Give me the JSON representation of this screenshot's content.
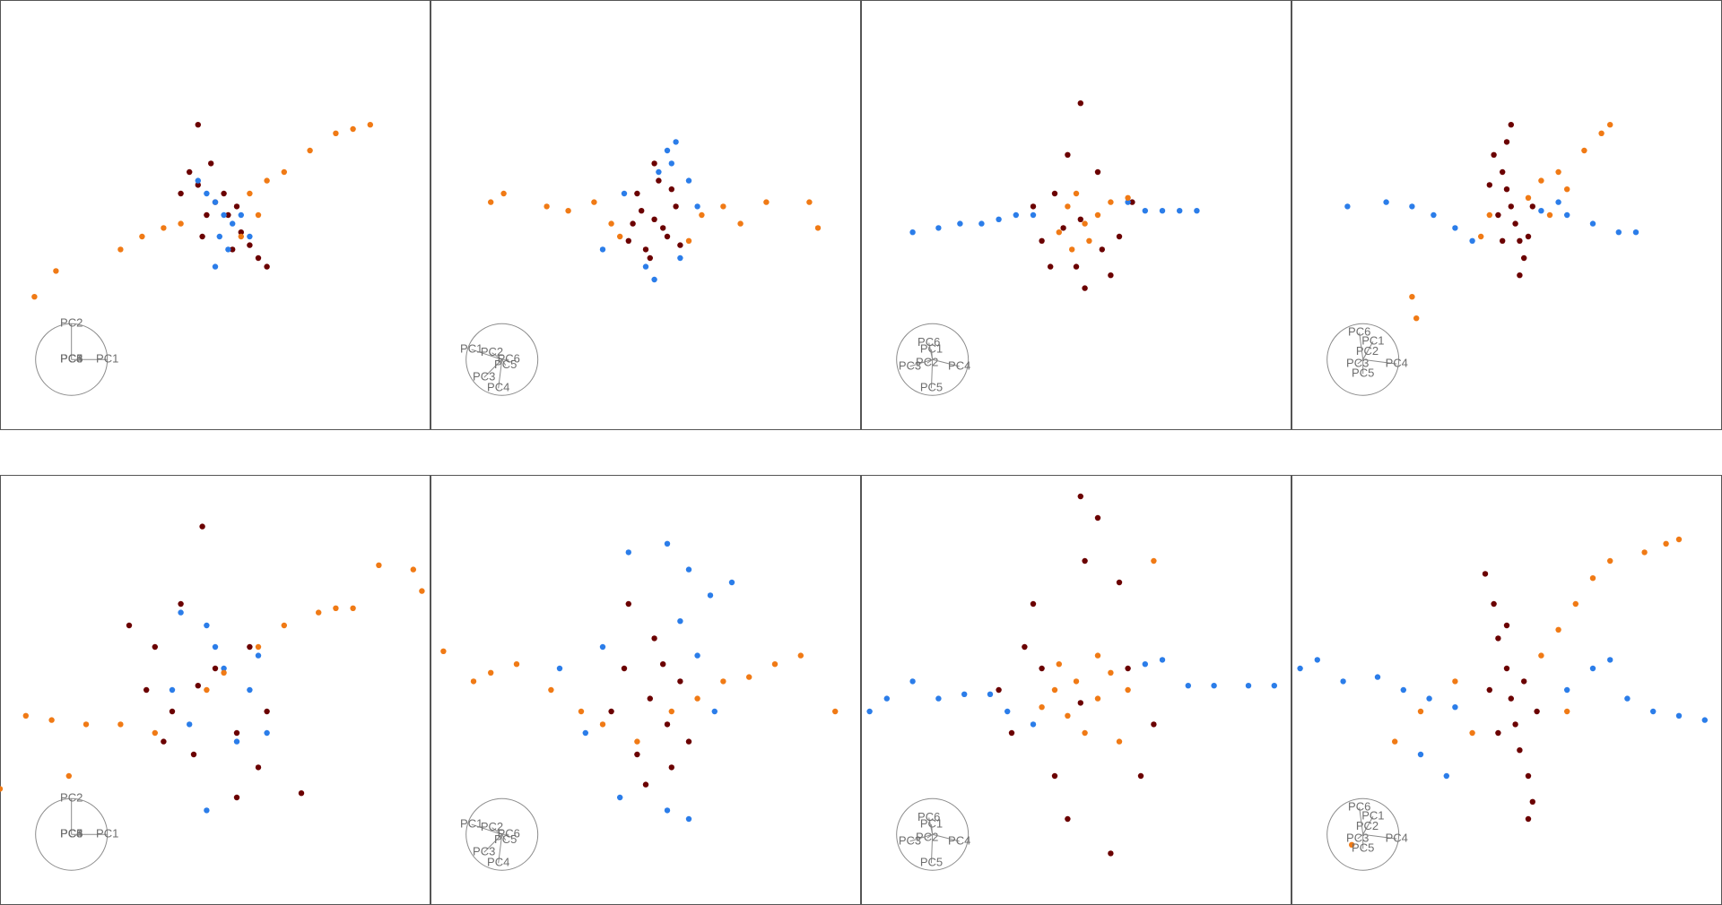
{
  "chart_data": [
    {
      "type": "scatter",
      "xlim": [
        0,
        100
      ],
      "ylim": [
        100,
        0
      ],
      "series": [
        {
          "color": "#6b0000",
          "x": [
            46,
            50,
            53,
            56,
            48,
            52,
            58,
            44,
            60,
            47,
            55,
            49,
            62,
            42,
            54,
            46
          ],
          "values": [
            43,
            47,
            50,
            54,
            50,
            45,
            57,
            40,
            60,
            55,
            48,
            38,
            62,
            45,
            58,
            29
          ]
        },
        {
          "color": "#2b7de9",
          "x": [
            50,
            52,
            54,
            48,
            51,
            56,
            50,
            53,
            46,
            58
          ],
          "values": [
            47,
            50,
            52,
            45,
            55,
            50,
            62,
            58,
            42,
            55
          ]
        },
        {
          "color": "#f07a15",
          "x": [
            8,
            13,
            28,
            33,
            38,
            42,
            58,
            62,
            66,
            72,
            78,
            82,
            86,
            60,
            56
          ],
          "values": [
            69,
            63,
            58,
            55,
            53,
            52,
            45,
            42,
            40,
            35,
            31,
            30,
            29,
            50,
            55
          ]
        }
      ],
      "axes": [
        {
          "label": "PC1",
          "x": 1.0,
          "y": 0
        },
        {
          "label": "PC2",
          "x": 0,
          "y": -1.0
        },
        {
          "label": "PC3",
          "x": 0,
          "y": 0
        },
        {
          "label": "PC4",
          "x": 0,
          "y": 0
        },
        {
          "label": "PC5",
          "x": 0,
          "y": 0
        },
        {
          "label": "PC6",
          "x": 0,
          "y": 0
        }
      ]
    },
    {
      "type": "scatter",
      "xlim": [
        0,
        100
      ],
      "ylim": [
        100,
        0
      ],
      "series": [
        {
          "color": "#6b0000",
          "x": [
            52,
            48,
            55,
            50,
            57,
            47,
            53,
            51,
            56,
            49,
            54,
            46,
            58,
            52
          ],
          "values": [
            51,
            45,
            55,
            58,
            48,
            52,
            42,
            60,
            44,
            49,
            53,
            56,
            57,
            38
          ]
        },
        {
          "color": "#2b7de9",
          "x": [
            55,
            57,
            53,
            60,
            45,
            58,
            50,
            52,
            40,
            62,
            56
          ],
          "values": [
            35,
            33,
            40,
            42,
            45,
            60,
            62,
            65,
            58,
            48,
            38
          ]
        },
        {
          "color": "#f07a15",
          "x": [
            14,
            17,
            27,
            32,
            38,
            42,
            63,
            68,
            72,
            78,
            88,
            90,
            60,
            44
          ],
          "values": [
            47,
            45,
            48,
            49,
            47,
            52,
            50,
            48,
            52,
            47,
            47,
            53,
            56,
            55
          ]
        }
      ],
      "axes": [
        {
          "label": "PC1",
          "x": -0.85,
          "y": -0.28
        },
        {
          "label": "PC2",
          "x": -0.28,
          "y": -0.19
        },
        {
          "label": "PC3",
          "x": -0.5,
          "y": 0.5
        },
        {
          "label": "PC4",
          "x": -0.1,
          "y": 0.8
        },
        {
          "label": "PC5",
          "x": 0.1,
          "y": 0.16
        },
        {
          "label": "PC6",
          "x": 0.19,
          "y": 0
        }
      ]
    },
    {
      "type": "scatter",
      "xlim": [
        0,
        100
      ],
      "ylim": [
        100,
        0
      ],
      "series": [
        {
          "color": "#6b0000",
          "x": [
            51,
            45,
            55,
            60,
            42,
            50,
            48,
            58,
            40,
            63,
            52,
            47,
            56,
            51,
            44
          ],
          "values": [
            51,
            45,
            40,
            55,
            56,
            62,
            36,
            64,
            48,
            47,
            67,
            53,
            58,
            24,
            62
          ]
        },
        {
          "color": "#2b7de9",
          "x": [
            12,
            18,
            23,
            28,
            32,
            36,
            40,
            66,
            70,
            74,
            78,
            62
          ],
          "values": [
            54,
            53,
            52,
            52,
            51,
            50,
            50,
            49,
            49,
            49,
            49,
            47
          ]
        },
        {
          "color": "#f07a15",
          "x": [
            48,
            52,
            50,
            55,
            46,
            53,
            58,
            49,
            62
          ],
          "values": [
            48,
            52,
            45,
            50,
            54,
            56,
            47,
            58,
            46
          ]
        }
      ],
      "axes": [
        {
          "label": "PC1",
          "x": -0.03,
          "y": -0.28
        },
        {
          "label": "PC2",
          "x": -0.15,
          "y": 0.1
        },
        {
          "label": "PC3",
          "x": -0.63,
          "y": 0.19
        },
        {
          "label": "PC4",
          "x": 0.75,
          "y": 0.19
        },
        {
          "label": "PC5",
          "x": -0.03,
          "y": 0.8
        },
        {
          "label": "PC6",
          "x": -0.1,
          "y": -0.47
        }
      ]
    },
    {
      "type": "scatter",
      "xlim": [
        0,
        100
      ],
      "ylim": [
        100,
        0
      ],
      "series": [
        {
          "color": "#6b0000",
          "x": [
            47,
            49,
            50,
            51,
            52,
            53,
            54,
            48,
            46,
            55,
            50,
            53,
            49,
            51,
            56
          ],
          "values": [
            36,
            40,
            44,
            48,
            52,
            56,
            60,
            50,
            43,
            55,
            33,
            64,
            56,
            29,
            48
          ]
        },
        {
          "color": "#2b7de9",
          "x": [
            13,
            22,
            28,
            33,
            38,
            42,
            58,
            62,
            64,
            70,
            76,
            80
          ],
          "values": [
            48,
            47,
            48,
            50,
            53,
            56,
            49,
            47,
            50,
            52,
            54,
            54
          ]
        },
        {
          "color": "#f07a15",
          "x": [
            28,
            29,
            44,
            46,
            55,
            58,
            62,
            64,
            68,
            72,
            74,
            60
          ],
          "values": [
            69,
            74,
            55,
            50,
            46,
            42,
            40,
            44,
            35,
            31,
            29,
            50
          ]
        }
      ],
      "axes": [
        {
          "label": "PC1",
          "x": 0.28,
          "y": -0.5
        },
        {
          "label": "PC2",
          "x": 0.12,
          "y": -0.22
        },
        {
          "label": "PC3",
          "x": -0.15,
          "y": 0.12
        },
        {
          "label": "PC4",
          "x": 0.94,
          "y": 0.12
        },
        {
          "label": "PC5",
          "x": 0,
          "y": 0.4
        },
        {
          "label": "PC6",
          "x": -0.1,
          "y": -0.75
        }
      ]
    },
    {
      "type": "scatter",
      "xlim": [
        0,
        100
      ],
      "ylim": [
        100,
        0
      ],
      "series": [
        {
          "color": "#6b0000",
          "x": [
            46,
            36,
            30,
            40,
            55,
            60,
            70,
            42,
            47,
            50,
            62,
            34,
            55,
            45,
            58,
            38
          ],
          "values": [
            49,
            40,
            35,
            55,
            60,
            68,
            74,
            30,
            12,
            45,
            55,
            50,
            75,
            65,
            40,
            62
          ]
        },
        {
          "color": "#2b7de9",
          "x": [
            42,
            48,
            52,
            58,
            44,
            60,
            55,
            48,
            40,
            62,
            50
          ],
          "values": [
            32,
            35,
            45,
            50,
            58,
            42,
            62,
            78,
            50,
            60,
            40
          ]
        },
        {
          "color": "#f07a15",
          "x": [
            0,
            6,
            12,
            20,
            28,
            36,
            48,
            60,
            66,
            74,
            78,
            82,
            88,
            96,
            98,
            16,
            52
          ],
          "values": [
            73,
            56,
            57,
            58,
            58,
            60,
            50,
            40,
            35,
            32,
            31,
            31,
            21,
            22,
            27,
            70,
            46
          ]
        }
      ],
      "axes": [
        {
          "label": "PC1",
          "x": 1.0,
          "y": 0
        },
        {
          "label": "PC2",
          "x": 0,
          "y": -1.0
        },
        {
          "label": "PC3",
          "x": 0,
          "y": 0
        },
        {
          "label": "PC4",
          "x": 0,
          "y": 0
        },
        {
          "label": "PC5",
          "x": 0,
          "y": 0
        },
        {
          "label": "PC6",
          "x": 0,
          "y": 0
        }
      ]
    },
    {
      "type": "scatter",
      "xlim": [
        0,
        100
      ],
      "ylim": [
        100,
        0
      ],
      "series": [
        {
          "color": "#6b0000",
          "x": [
            51,
            45,
            55,
            48,
            58,
            42,
            52,
            50,
            60,
            46,
            54,
            56
          ],
          "values": [
            52,
            45,
            58,
            65,
            48,
            55,
            38,
            72,
            62,
            30,
            44,
            68
          ]
        },
        {
          "color": "#2b7de9",
          "x": [
            46,
            55,
            60,
            65,
            70,
            58,
            62,
            40,
            36,
            44,
            55,
            60,
            30,
            66
          ],
          "values": [
            18,
            16,
            22,
            28,
            25,
            34,
            42,
            40,
            60,
            75,
            78,
            80,
            45,
            55
          ]
        },
        {
          "color": "#f07a15",
          "x": [
            3,
            10,
            14,
            20,
            28,
            35,
            40,
            62,
            68,
            74,
            80,
            86,
            94,
            48,
            56
          ],
          "values": [
            41,
            48,
            46,
            44,
            50,
            55,
            58,
            52,
            48,
            47,
            44,
            42,
            55,
            62,
            55
          ]
        }
      ],
      "axes": [
        {
          "label": "PC1",
          "x": -0.85,
          "y": -0.28
        },
        {
          "label": "PC2",
          "x": -0.28,
          "y": -0.19
        },
        {
          "label": "PC3",
          "x": -0.5,
          "y": 0.5
        },
        {
          "label": "PC4",
          "x": -0.1,
          "y": 0.8
        },
        {
          "label": "PC5",
          "x": 0.1,
          "y": 0.16
        },
        {
          "label": "PC6",
          "x": 0.19,
          "y": 0
        }
      ]
    },
    {
      "type": "scatter",
      "xlim": [
        0,
        100
      ],
      "ylim": [
        100,
        0
      ],
      "series": [
        {
          "color": "#6b0000",
          "x": [
            51,
            40,
            60,
            35,
            65,
            48,
            55,
            51,
            42,
            62,
            45,
            58,
            38,
            52,
            68,
            32
          ],
          "values": [
            53,
            30,
            25,
            60,
            70,
            80,
            10,
            5,
            45,
            45,
            70,
            88,
            40,
            20,
            58,
            50
          ]
        },
        {
          "color": "#2b7de9",
          "x": [
            2,
            6,
            12,
            18,
            24,
            30,
            34,
            66,
            70,
            76,
            82,
            90,
            96,
            40
          ],
          "values": [
            55,
            52,
            48,
            52,
            51,
            51,
            55,
            44,
            43,
            49,
            49,
            49,
            49,
            58
          ]
        },
        {
          "color": "#f07a15",
          "x": [
            45,
            50,
            55,
            48,
            42,
            58,
            52,
            62,
            68,
            46,
            60,
            55
          ],
          "values": [
            50,
            48,
            52,
            56,
            54,
            46,
            60,
            50,
            20,
            44,
            62,
            42
          ]
        }
      ],
      "axes": [
        {
          "label": "PC1",
          "x": -0.03,
          "y": -0.28
        },
        {
          "label": "PC2",
          "x": -0.15,
          "y": 0.1
        },
        {
          "label": "PC3",
          "x": -0.63,
          "y": 0.19
        },
        {
          "label": "PC4",
          "x": 0.75,
          "y": 0.19
        },
        {
          "label": "PC5",
          "x": -0.03,
          "y": 0.8
        },
        {
          "label": "PC6",
          "x": -0.1,
          "y": -0.47
        }
      ]
    },
    {
      "type": "scatter",
      "xlim": [
        0,
        100
      ],
      "ylim": [
        100,
        0
      ],
      "series": [
        {
          "color": "#6b0000",
          "x": [
            45,
            47,
            48,
            50,
            51,
            52,
            53,
            55,
            56,
            46,
            57,
            48,
            50,
            54,
            55
          ],
          "values": [
            23,
            30,
            38,
            45,
            52,
            58,
            64,
            70,
            76,
            50,
            55,
            60,
            35,
            48,
            80
          ]
        },
        {
          "color": "#2b7de9",
          "x": [
            2,
            6,
            12,
            20,
            26,
            32,
            38,
            64,
            70,
            74,
            78,
            84,
            90,
            96,
            36,
            30
          ],
          "values": [
            45,
            43,
            48,
            47,
            50,
            52,
            54,
            50,
            45,
            43,
            52,
            55,
            56,
            57,
            70,
            65
          ]
        },
        {
          "color": "#f07a15",
          "x": [
            14,
            24,
            30,
            38,
            58,
            62,
            66,
            70,
            74,
            82,
            87,
            90,
            42,
            64
          ],
          "values": [
            86,
            62,
            55,
            48,
            42,
            36,
            30,
            24,
            20,
            18,
            16,
            15,
            60,
            55
          ]
        }
      ],
      "axes": [
        {
          "label": "PC1",
          "x": 0.28,
          "y": -0.5
        },
        {
          "label": "PC2",
          "x": 0.12,
          "y": -0.22
        },
        {
          "label": "PC3",
          "x": -0.15,
          "y": 0.12
        },
        {
          "label": "PC4",
          "x": 0.94,
          "y": 0.12
        },
        {
          "label": "PC5",
          "x": 0,
          "y": 0.4
        },
        {
          "label": "PC6",
          "x": -0.1,
          "y": -0.75
        }
      ]
    }
  ]
}
